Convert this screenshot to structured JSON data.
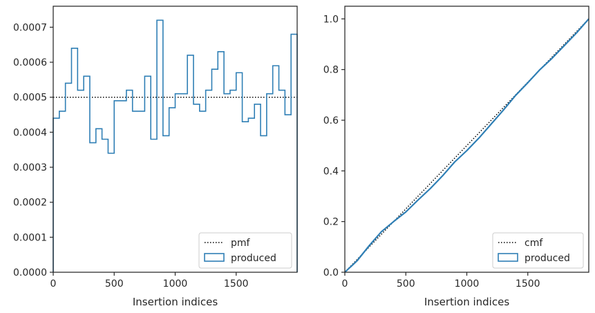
{
  "chart_data": [
    {
      "type": "step",
      "xlabel": "Insertion indices",
      "ylabel": "",
      "title": "",
      "xlim": [
        0,
        2000
      ],
      "ylim": [
        0,
        0.00076
      ],
      "xticks": [
        0,
        500,
        1000,
        1500
      ],
      "xtick_labels": [
        "0",
        "500",
        "1000",
        "1500"
      ],
      "yticks": [
        0,
        0.0001,
        0.0002,
        0.0003,
        0.0004,
        0.0005,
        0.0006,
        0.0007
      ],
      "ytick_labels": [
        "0.0000",
        "0.0001",
        "0.0002",
        "0.0003",
        "0.0004",
        "0.0005",
        "0.0006",
        "0.0007"
      ],
      "grid": false,
      "legend_position": "bottom-right",
      "series": [
        {
          "name": "pmf",
          "style": "dotted",
          "color": "#000000",
          "x": [
            0,
            2000
          ],
          "y": [
            0.0005,
            0.0005
          ]
        },
        {
          "name": "produced",
          "style": "step-histogram",
          "color": "#2f7fb5",
          "bin_width": 50,
          "bin_edges_start": 0,
          "values": [
            0.00044,
            0.00046,
            0.00054,
            0.00064,
            0.00052,
            0.00056,
            0.00037,
            0.00041,
            0.00038,
            0.00034,
            0.00049,
            0.00049,
            0.00052,
            0.00046,
            0.00046,
            0.00056,
            0.00038,
            0.00072,
            0.00039,
            0.00047,
            0.00051,
            0.00051,
            0.00062,
            0.00048,
            0.00046,
            0.00052,
            0.00058,
            0.00063,
            0.00051,
            0.00052,
            0.00057,
            0.00043,
            0.00044,
            0.00048,
            0.00039,
            0.00051,
            0.00059,
            0.00052,
            0.00045,
            0.00068
          ]
        }
      ]
    },
    {
      "type": "line",
      "xlabel": "Insertion indices",
      "ylabel": "",
      "title": "",
      "xlim": [
        0,
        2000
      ],
      "ylim": [
        0,
        1.05
      ],
      "xticks": [
        0,
        500,
        1000,
        1500
      ],
      "xtick_labels": [
        "0",
        "500",
        "1000",
        "1500"
      ],
      "yticks": [
        0,
        0.2,
        0.4,
        0.6,
        0.8,
        1.0
      ],
      "ytick_labels": [
        "0.0",
        "0.2",
        "0.4",
        "0.6",
        "0.8",
        "1.0"
      ],
      "grid": false,
      "legend_position": "bottom-right",
      "series": [
        {
          "name": "cmf",
          "style": "dotted",
          "color": "#000000",
          "x": [
            0,
            2000
          ],
          "y": [
            0,
            1.0
          ]
        },
        {
          "name": "produced",
          "style": "solid",
          "color": "#2f7fb5",
          "x": [
            0,
            100,
            200,
            300,
            400,
            500,
            600,
            700,
            800,
            900,
            1000,
            1100,
            1200,
            1300,
            1400,
            1500,
            1600,
            1700,
            1800,
            1900,
            2000
          ],
          "y": [
            0,
            0.045,
            0.105,
            0.16,
            0.2,
            0.238,
            0.285,
            0.33,
            0.38,
            0.435,
            0.48,
            0.53,
            0.585,
            0.64,
            0.698,
            0.748,
            0.8,
            0.845,
            0.895,
            0.945,
            1.0
          ]
        }
      ]
    }
  ]
}
